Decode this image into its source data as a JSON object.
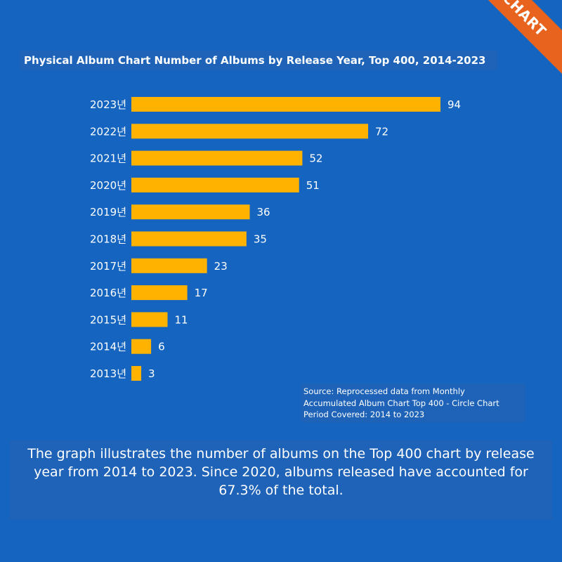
{
  "brand": {
    "banner_text": "CIRCLE CHART",
    "banner_color": "#E8641E"
  },
  "colors": {
    "background": "#1565C0",
    "bar": "#FFB300",
    "panel": "#1E63B8"
  },
  "chart_data": {
    "type": "bar",
    "orientation": "horizontal",
    "title": "Physical Album Chart Number of Albums by Release Year, Top 400, 2014-2023",
    "categories": [
      "2023년",
      "2022년",
      "2021년",
      "2020년",
      "2019년",
      "2018년",
      "2017년",
      "2016년",
      "2015년",
      "2014년",
      "2013년"
    ],
    "values": [
      94,
      72,
      52,
      51,
      36,
      35,
      23,
      17,
      11,
      6,
      3
    ],
    "xlim": [
      0,
      94
    ],
    "grid": false,
    "legend": "none"
  },
  "source": {
    "line1": "Source: Reprocessed data from Monthly",
    "line2": "Accumulated Album Chart Top 400 - Circle Chart",
    "line3": "Period Covered: 2014 to 2023"
  },
  "description": "The graph illustrates the number of albums on the Top 400 chart by release year from 2014 to 2023. Since 2020, albums released have accounted for 67.3% of the total."
}
